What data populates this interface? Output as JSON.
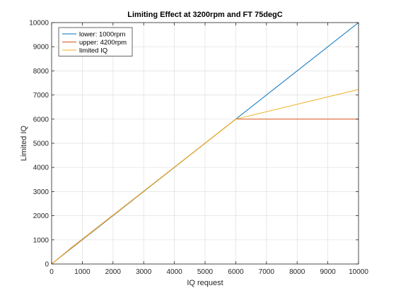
{
  "chart_data": {
    "type": "line",
    "title": "Limiting Effect at 3200rpm and FT 75degC",
    "xlabel": "IQ request",
    "ylabel": "Limited IQ",
    "xlim": [
      0,
      10000
    ],
    "ylim": [
      0,
      10000
    ],
    "xticks": [
      "0",
      "1000",
      "2000",
      "3000",
      "4000",
      "5000",
      "6000",
      "7000",
      "8000",
      "9000",
      "10000"
    ],
    "yticks": [
      "0",
      "1000",
      "2000",
      "3000",
      "4000",
      "5000",
      "6000",
      "7000",
      "8000",
      "9000",
      "10000"
    ],
    "grid": true,
    "legend_position": "top-left",
    "series": [
      {
        "name": "lower: 1000rpm",
        "color": "#0072BD",
        "x": [
          0,
          10000
        ],
        "y": [
          0,
          10000
        ]
      },
      {
        "name": "upper: 4200rpm",
        "color": "#D95319",
        "x": [
          0,
          600,
          6000,
          10000
        ],
        "y": [
          0,
          630,
          6000,
          6000
        ]
      },
      {
        "name": "limited IQ",
        "color": "#EDB120",
        "x": [
          0,
          600,
          6000,
          10000
        ],
        "y": [
          0,
          615,
          6000,
          7230
        ]
      }
    ]
  }
}
